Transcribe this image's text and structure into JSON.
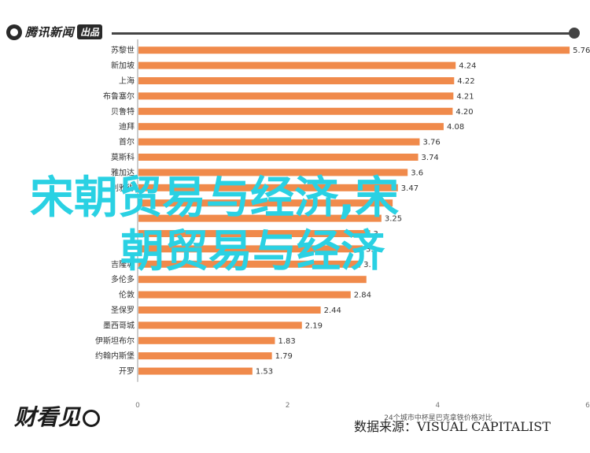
{
  "header": {
    "logo_text": "腾讯新闻",
    "logo_badge": "出品"
  },
  "watermark": {
    "line1": "宋朝贸易与经济,宋",
    "line2": "朝贸易与经济"
  },
  "footer": {
    "logo_text": "财看见",
    "source": "数据来源：VISUAL CAPITALIST"
  },
  "colors": {
    "bar": "#F08A4B",
    "axis": "#999999",
    "label": "#333333",
    "watermark": "#2AD1E3"
  },
  "chart_data": {
    "type": "bar",
    "orientation": "horizontal",
    "xlabel": "24个城市中杯星巴克拿铁价格对比",
    "xlim": [
      0,
      6
    ],
    "xticks": [
      "0",
      "2",
      "4",
      "6"
    ],
    "categories": [
      "苏黎世",
      "新加坡",
      "上海",
      "布鲁塞尔",
      "贝鲁特",
      "迪拜",
      "首尔",
      "莫斯科",
      "雅加达",
      "利雅得",
      "",
      "",
      "",
      "",
      "吉隆坡",
      "多伦多",
      "伦敦",
      "圣保罗",
      "墨西哥城",
      "伊斯坦布尔",
      "约翰内斯堡",
      "开罗"
    ],
    "values": [
      5.76,
      4.24,
      4.22,
      4.21,
      4.2,
      4.08,
      3.76,
      3.74,
      3.6,
      3.47,
      3.4,
      3.25,
      3.1,
      3.0,
      2.97,
      3.05,
      2.84,
      2.44,
      2.19,
      1.83,
      1.79,
      1.53
    ],
    "value_labels": [
      "5.76",
      "4.24",
      "4.22",
      "4.21",
      "4.20",
      "4.08",
      "3.76",
      "3.74",
      "3.6",
      "3.47",
      "",
      "3.25",
      "3.",
      "3.",
      "3.",
      "",
      "2.84",
      "2.44",
      "2.19",
      "1.83",
      "1.79",
      "1.53"
    ]
  }
}
